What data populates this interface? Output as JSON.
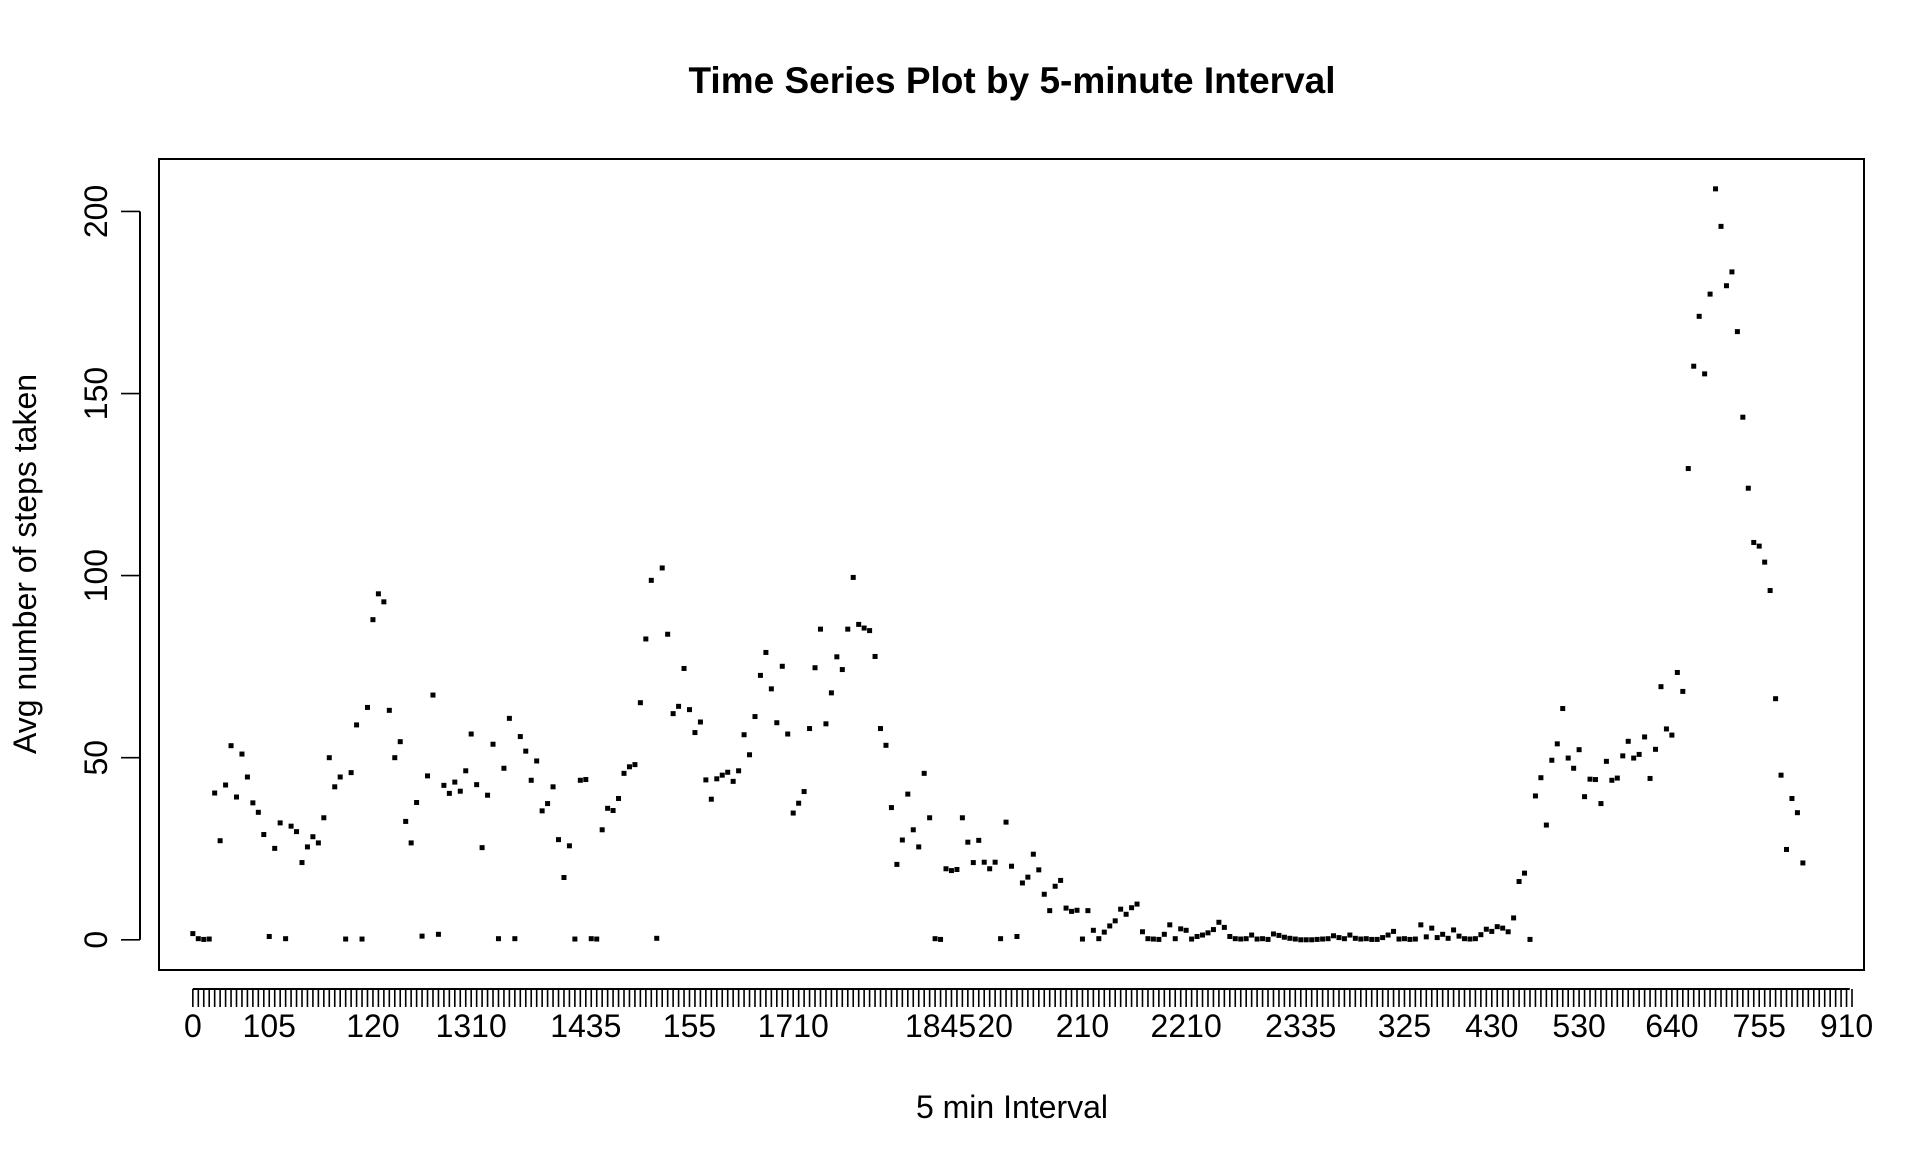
{
  "chart_data": {
    "type": "scatter",
    "title": "Time Series Plot by 5-minute Interval",
    "xlabel": "5 min Interval",
    "ylabel": "Avg number of steps taken",
    "yticks": [
      0,
      50,
      100,
      150,
      200
    ],
    "yticks_labels": [
      "0",
      "50",
      "100",
      "150",
      "200"
    ],
    "ylim": [
      -8.3,
      214.4
    ],
    "xlim": [
      -6.2,
      306.2
    ],
    "num_categories": 288,
    "xtick_labels": [
      {
        "index": 0,
        "label": "0"
      },
      {
        "index": 14,
        "label": "105"
      },
      {
        "index": 33,
        "label": "120"
      },
      {
        "index": 51,
        "label": "1310"
      },
      {
        "index": 72,
        "label": "1435"
      },
      {
        "index": 91,
        "label": "155"
      },
      {
        "index": 110,
        "label": "1710"
      },
      {
        "index": 137,
        "label": "1845"
      },
      {
        "index": 147,
        "label": "20"
      },
      {
        "index": 163,
        "label": "210"
      },
      {
        "index": 182,
        "label": "2210"
      },
      {
        "index": 203,
        "label": "2335"
      },
      {
        "index": 222,
        "label": "325"
      },
      {
        "index": 238,
        "label": "430"
      },
      {
        "index": 254,
        "label": "530"
      },
      {
        "index": 271,
        "label": "640"
      },
      {
        "index": 287,
        "label": "755"
      },
      {
        "index": 303,
        "label": "910"
      }
    ],
    "values": [
      1.7,
      0.3,
      0.1,
      0.2,
      40.3,
      27.2,
      42.5,
      53.3,
      39.2,
      51.0,
      44.7,
      37.6,
      35.0,
      28.9,
      0.9,
      25.1,
      32.1,
      0.3,
      31.2,
      29.7,
      21.2,
      25.5,
      28.3,
      26.6,
      33.5,
      50.0,
      42.0,
      44.7,
      0.2,
      45.9,
      59.0,
      0.2,
      63.8,
      87.9,
      95.0,
      92.8,
      63.0,
      50.0,
      54.4,
      32.5,
      26.6,
      37.7,
      1.0,
      45.0,
      67.2,
      1.5,
      42.4,
      40.2,
      43.3,
      40.8,
      46.4,
      56.5,
      42.6,
      25.3,
      39.7,
      53.7,
      0.3,
      47.1,
      60.8,
      0.3,
      55.8,
      51.8,
      43.8,
      49.1,
      35.4,
      37.4,
      42.0,
      27.5,
      17.1,
      25.8,
      0.2,
      43.8,
      44.0,
      0.3,
      0.2,
      30.2,
      36.1,
      35.5,
      38.8,
      45.7,
      47.5,
      48.1,
      65.1,
      82.6,
      98.7,
      0.4,
      102.1,
      83.9,
      62.1,
      64.1,
      74.5,
      63.2,
      56.9,
      59.8,
      43.9,
      38.6,
      44.2,
      45.2,
      46.0,
      43.5,
      46.4,
      56.3,
      50.8,
      61.3,
      72.6,
      78.9,
      68.9,
      59.6,
      75.1,
      56.5,
      34.8,
      37.5,
      40.7,
      58.0,
      74.7,
      85.3,
      59.3,
      67.8,
      77.7,
      74.2,
      85.3,
      99.5,
      86.6,
      85.6,
      84.9,
      77.8,
      58.0,
      53.4,
      36.3,
      20.7,
      27.4,
      40.0,
      30.2,
      25.5,
      45.7,
      33.5,
      0.3,
      0.1,
      19.5,
      19.0,
      19.3,
      33.5,
      26.8,
      21.2,
      27.3,
      21.3,
      19.5,
      21.3,
      0.3,
      32.3,
      20.2,
      0.9,
      15.6,
      17.2,
      23.5,
      19.2,
      12.5,
      8.0,
      14.7,
      16.3,
      8.7,
      7.8,
      8.1,
      0.2,
      8.0,
      2.6,
      0.3,
      2.1,
      3.8,
      5.2,
      8.4,
      7.0,
      8.8,
      9.8,
      2.2,
      0.3,
      0.2,
      0.1,
      1.5,
      4.1,
      0.3,
      3.0,
      2.6,
      0.2,
      0.9,
      1.3,
      1.9,
      2.8,
      4.8,
      3.4,
      0.9,
      0.3,
      0.2,
      0.3,
      1.3,
      0.2,
      0.3,
      0.1,
      1.6,
      1.2,
      0.7,
      0.4,
      0.2,
      0.0,
      0.0,
      0.0,
      0.1,
      0.2,
      0.3,
      1.1,
      0.6,
      0.3,
      1.3,
      0.4,
      0.2,
      0.3,
      0.1,
      0.1,
      0.6,
      1.3,
      2.3,
      0.2,
      0.3,
      0.1,
      0.2,
      4.1,
      0.8,
      3.2,
      0.6,
      1.5,
      0.4,
      2.7,
      1.0,
      0.3,
      0.2,
      0.3,
      1.4,
      2.9,
      2.3,
      3.6,
      3.2,
      2.2,
      6.0,
      16.0,
      18.3,
      0.1,
      39.5,
      44.5,
      31.5,
      49.3,
      53.8,
      63.5,
      49.9,
      47.1,
      52.2,
      39.3,
      44.1,
      44.0,
      37.4,
      49.0,
      43.8,
      44.4,
      50.5,
      54.5,
      49.9,
      50.9,
      55.7,
      44.3,
      52.3,
      69.5,
      57.9,
      56.2,
      73.4,
      68.2,
      129.4,
      157.5,
      171.2,
      155.4,
      177.3,
      206.2,
      195.9,
      179.6,
      183.4,
      167.0,
      143.5,
      124.0,
      109.1,
      108.1,
      103.7,
      95.9,
      66.2,
      45.2,
      24.8,
      38.8,
      34.9,
      21.1
    ]
  }
}
